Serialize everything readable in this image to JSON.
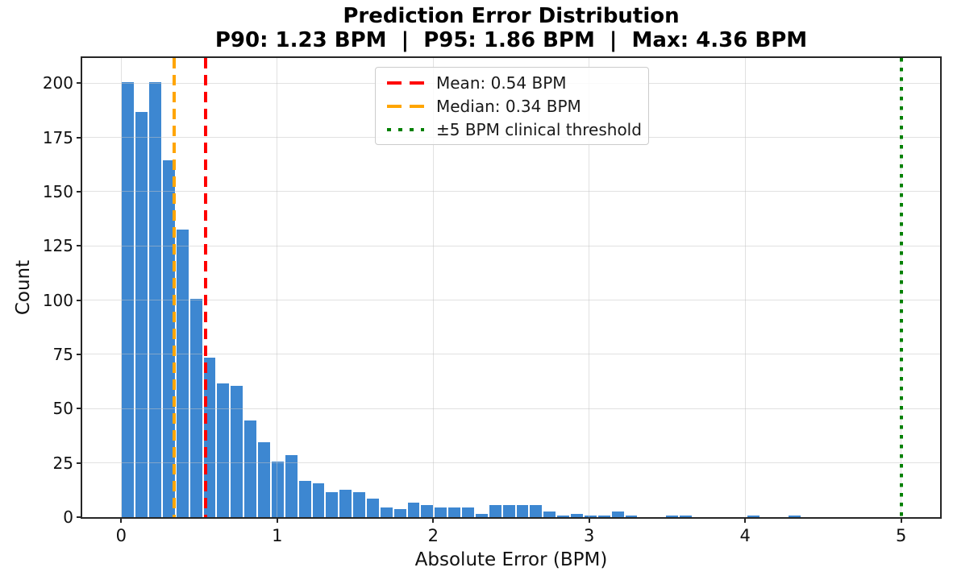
{
  "chart_data": {
    "type": "bar",
    "subtype": "histogram",
    "title": "Prediction Error Distribution",
    "subtitle": "P90: 1.23 BPM  |  P95: 1.86 BPM  |  Max: 4.36 BPM",
    "xlabel": "Absolute Error (BPM)",
    "ylabel": "Count",
    "bin_start": 0,
    "bin_width": 0.0872,
    "counts": [
      201,
      187,
      201,
      165,
      133,
      101,
      74,
      62,
      61,
      45,
      35,
      26,
      29,
      17,
      16,
      12,
      13,
      12,
      9,
      5,
      4,
      7,
      6,
      5,
      5,
      5,
      2,
      6,
      6,
      6,
      6,
      3,
      1,
      2,
      1,
      1,
      3,
      1,
      0,
      0,
      1,
      1,
      0,
      0,
      0,
      0,
      1,
      0,
      0,
      1
    ],
    "xlim": [
      -0.25,
      5.25
    ],
    "ylim": [
      0,
      211.6
    ],
    "xticks": [
      0,
      1,
      2,
      3,
      4,
      5
    ],
    "yticks": [
      0,
      25,
      50,
      75,
      100,
      125,
      150,
      175,
      200
    ],
    "grid": true,
    "legend_position": "upper center",
    "bar_color": "#3d87d1",
    "bar_edge_color": "#ffffff",
    "annotations": [
      {
        "label": "Mean: 0.54 BPM",
        "x": 0.54,
        "color": "#ff0000",
        "style": "dashed"
      },
      {
        "label": "Median: 0.34 BPM",
        "x": 0.34,
        "color": "#ffa500",
        "style": "dashed"
      },
      {
        "label": "±5 BPM clinical threshold",
        "x": 5.0,
        "color": "#008000",
        "style": "dotted"
      }
    ]
  }
}
